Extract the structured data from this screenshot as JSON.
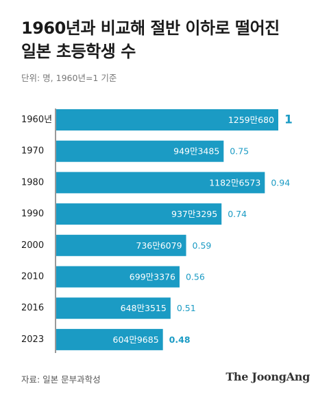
{
  "title_lines": [
    "1960년과 비교해 절반 이하로 떨어진",
    "일본 초등학생 수"
  ],
  "subtitle": "단위: 명, 1960년=1 기준",
  "source": "자료: 일본 문부과학성",
  "brand": "The JoongAng",
  "colors": {
    "bar": "#1b9bc4",
    "ratio": "#1b9bc4",
    "bar_label": "#ffffff",
    "category": "#1a1a1a"
  },
  "chart_data": {
    "type": "bar",
    "orientation": "horizontal",
    "categories": [
      "1960년",
      "1970",
      "1980",
      "1990",
      "2000",
      "2010",
      "2016",
      "2023"
    ],
    "values": [
      12590680,
      9493485,
      11826573,
      9373295,
      7366079,
      6993376,
      6483515,
      6049685
    ],
    "value_labels": [
      "1259만680",
      "949만3485",
      "1182만6573",
      "937만3295",
      "736만6079",
      "699만3376",
      "648만3515",
      "604만9685"
    ],
    "ratio_labels": [
      "1",
      "0.75",
      "0.94",
      "0.74",
      "0.59",
      "0.56",
      "0.51",
      "0.48"
    ],
    "emphasized_ratios": [
      0,
      7
    ],
    "title": "1960년과 비교해 절반 이하로 떨어진 일본 초등학생 수",
    "grid": false
  }
}
